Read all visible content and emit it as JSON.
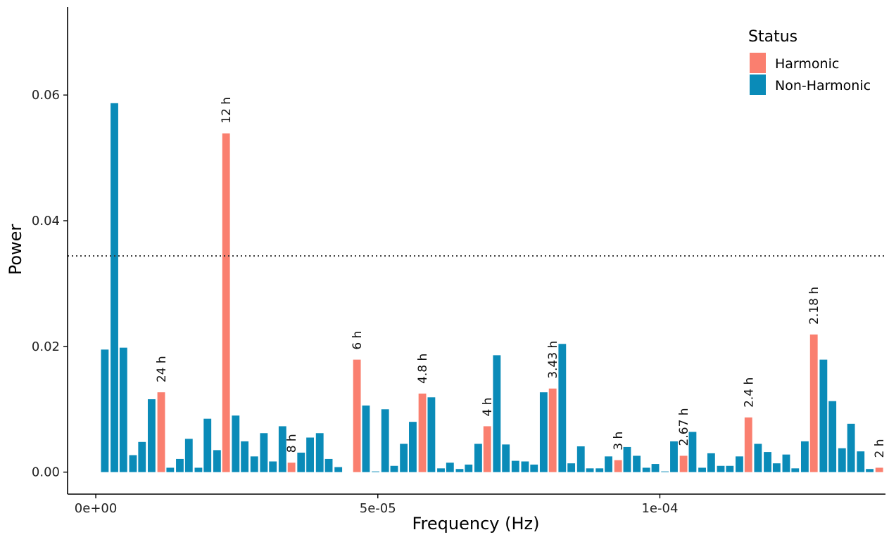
{
  "colors": {
    "harmonic": "#FA7F6F",
    "non_harmonic": "#0A8BB8",
    "axis": "#000000",
    "threshold": "#333333"
  },
  "chart_data": {
    "type": "bar",
    "xlabel": "Frequency (Hz)",
    "ylabel": "Power",
    "xlim": [
      -5e-06,
      0.00014
    ],
    "ylim": [
      -0.0035,
      0.074
    ],
    "x_ticks": [
      {
        "value": 0,
        "label": "0e+00"
      },
      {
        "value": 5e-05,
        "label": "5e-05"
      },
      {
        "value": 0.0001,
        "label": "1e-04"
      }
    ],
    "y_ticks": [
      {
        "value": 0,
        "label": "0.00"
      },
      {
        "value": 0.02,
        "label": "0.02"
      },
      {
        "value": 0.04,
        "label": "0.04"
      },
      {
        "value": 0.06,
        "label": "0.06"
      }
    ],
    "grid": false,
    "threshold": 0.0344,
    "bin_width": 1.65e-06,
    "legend": {
      "title": "Status",
      "placement": "top-right",
      "entries": [
        {
          "key": "harmonic",
          "label": "Harmonic"
        },
        {
          "key": "non_harmonic",
          "label": "Non-Harmonic"
        }
      ]
    },
    "bars": [
      {
        "x": 1.6e-06,
        "y": 0.0195,
        "status": "non_harmonic"
      },
      {
        "x": 3.3e-06,
        "y": 0.0587,
        "status": "non_harmonic"
      },
      {
        "x": 4.9e-06,
        "y": 0.0198,
        "status": "non_harmonic"
      },
      {
        "x": 6.6e-06,
        "y": 0.0027,
        "status": "non_harmonic"
      },
      {
        "x": 8.2e-06,
        "y": 0.0048,
        "status": "non_harmonic"
      },
      {
        "x": 9.9e-06,
        "y": 0.0116,
        "status": "non_harmonic"
      },
      {
        "x": 1.16e-05,
        "y": 0.0127,
        "status": "harmonic",
        "label": "24 h"
      },
      {
        "x": 1.32e-05,
        "y": 0.0007,
        "status": "non_harmonic"
      },
      {
        "x": 1.49e-05,
        "y": 0.0021,
        "status": "non_harmonic"
      },
      {
        "x": 1.65e-05,
        "y": 0.0053,
        "status": "non_harmonic"
      },
      {
        "x": 1.82e-05,
        "y": 0.0007,
        "status": "non_harmonic"
      },
      {
        "x": 1.98e-05,
        "y": 0.0085,
        "status": "non_harmonic"
      },
      {
        "x": 2.15e-05,
        "y": 0.0035,
        "status": "non_harmonic"
      },
      {
        "x": 2.31e-05,
        "y": 0.0539,
        "status": "harmonic",
        "label": "12 h"
      },
      {
        "x": 2.48e-05,
        "y": 0.009,
        "status": "non_harmonic"
      },
      {
        "x": 2.64e-05,
        "y": 0.0049,
        "status": "non_harmonic"
      },
      {
        "x": 2.81e-05,
        "y": 0.0025,
        "status": "non_harmonic"
      },
      {
        "x": 2.98e-05,
        "y": 0.0062,
        "status": "non_harmonic"
      },
      {
        "x": 3.14e-05,
        "y": 0.0017,
        "status": "non_harmonic"
      },
      {
        "x": 3.31e-05,
        "y": 0.0073,
        "status": "non_harmonic"
      },
      {
        "x": 3.47e-05,
        "y": 0.0015,
        "status": "harmonic",
        "label": "8 h"
      },
      {
        "x": 3.64e-05,
        "y": 0.0031,
        "status": "non_harmonic"
      },
      {
        "x": 3.8e-05,
        "y": 0.0055,
        "status": "non_harmonic"
      },
      {
        "x": 3.97e-05,
        "y": 0.0062,
        "status": "non_harmonic"
      },
      {
        "x": 4.13e-05,
        "y": 0.0021,
        "status": "non_harmonic"
      },
      {
        "x": 4.3e-05,
        "y": 0.0008,
        "status": "non_harmonic"
      },
      {
        "x": 4.63e-05,
        "y": 0.0179,
        "status": "harmonic",
        "label": "6 h"
      },
      {
        "x": 4.79e-05,
        "y": 0.0106,
        "status": "non_harmonic"
      },
      {
        "x": 4.96e-05,
        "y": 0.0001,
        "status": "non_harmonic"
      },
      {
        "x": 5.13e-05,
        "y": 0.01,
        "status": "non_harmonic"
      },
      {
        "x": 5.29e-05,
        "y": 0.001,
        "status": "non_harmonic"
      },
      {
        "x": 5.46e-05,
        "y": 0.0045,
        "status": "non_harmonic"
      },
      {
        "x": 5.62e-05,
        "y": 0.008,
        "status": "non_harmonic"
      },
      {
        "x": 5.79e-05,
        "y": 0.0125,
        "status": "harmonic",
        "label": "4.8 h"
      },
      {
        "x": 5.95e-05,
        "y": 0.0119,
        "status": "non_harmonic"
      },
      {
        "x": 6.12e-05,
        "y": 0.0006,
        "status": "non_harmonic"
      },
      {
        "x": 6.28e-05,
        "y": 0.0015,
        "status": "non_harmonic"
      },
      {
        "x": 6.45e-05,
        "y": 0.0005,
        "status": "non_harmonic"
      },
      {
        "x": 6.61e-05,
        "y": 0.0012,
        "status": "non_harmonic"
      },
      {
        "x": 6.78e-05,
        "y": 0.0045,
        "status": "non_harmonic"
      },
      {
        "x": 6.94e-05,
        "y": 0.0073,
        "status": "harmonic",
        "label": "4 h"
      },
      {
        "x": 7.11e-05,
        "y": 0.0186,
        "status": "non_harmonic"
      },
      {
        "x": 7.27e-05,
        "y": 0.0044,
        "status": "non_harmonic"
      },
      {
        "x": 7.44e-05,
        "y": 0.0018,
        "status": "non_harmonic"
      },
      {
        "x": 7.61e-05,
        "y": 0.0017,
        "status": "non_harmonic"
      },
      {
        "x": 7.77e-05,
        "y": 0.0012,
        "status": "non_harmonic"
      },
      {
        "x": 7.94e-05,
        "y": 0.0127,
        "status": "non_harmonic"
      },
      {
        "x": 8.1e-05,
        "y": 0.0133,
        "status": "harmonic",
        "label": "3.43 h"
      },
      {
        "x": 8.27e-05,
        "y": 0.0204,
        "status": "non_harmonic"
      },
      {
        "x": 8.43e-05,
        "y": 0.0014,
        "status": "non_harmonic"
      },
      {
        "x": 8.6e-05,
        "y": 0.0041,
        "status": "non_harmonic"
      },
      {
        "x": 8.76e-05,
        "y": 0.0006,
        "status": "non_harmonic"
      },
      {
        "x": 8.93e-05,
        "y": 0.0006,
        "status": "non_harmonic"
      },
      {
        "x": 9.09e-05,
        "y": 0.0025,
        "status": "non_harmonic"
      },
      {
        "x": 9.26e-05,
        "y": 0.0019,
        "status": "harmonic",
        "label": "3 h"
      },
      {
        "x": 9.42e-05,
        "y": 0.004,
        "status": "non_harmonic"
      },
      {
        "x": 9.59e-05,
        "y": 0.0026,
        "status": "non_harmonic"
      },
      {
        "x": 9.76e-05,
        "y": 0.0007,
        "status": "non_harmonic"
      },
      {
        "x": 9.92e-05,
        "y": 0.0013,
        "status": "non_harmonic"
      },
      {
        "x": 0.0001009,
        "y": 0.0001,
        "status": "non_harmonic"
      },
      {
        "x": 0.0001025,
        "y": 0.0049,
        "status": "non_harmonic"
      },
      {
        "x": 0.0001042,
        "y": 0.0026,
        "status": "harmonic",
        "label": "2.67 h"
      },
      {
        "x": 0.0001058,
        "y": 0.0064,
        "status": "non_harmonic"
      },
      {
        "x": 0.0001075,
        "y": 0.0007,
        "status": "non_harmonic"
      },
      {
        "x": 0.0001091,
        "y": 0.003,
        "status": "non_harmonic"
      },
      {
        "x": 0.0001108,
        "y": 0.001,
        "status": "non_harmonic"
      },
      {
        "x": 0.0001124,
        "y": 0.001,
        "status": "non_harmonic"
      },
      {
        "x": 0.0001141,
        "y": 0.0025,
        "status": "non_harmonic"
      },
      {
        "x": 0.0001157,
        "y": 0.0087,
        "status": "harmonic",
        "label": "2.4 h"
      },
      {
        "x": 0.0001174,
        "y": 0.0045,
        "status": "non_harmonic"
      },
      {
        "x": 0.0001191,
        "y": 0.0032,
        "status": "non_harmonic"
      },
      {
        "x": 0.0001207,
        "y": 0.0014,
        "status": "non_harmonic"
      },
      {
        "x": 0.0001224,
        "y": 0.0028,
        "status": "non_harmonic"
      },
      {
        "x": 0.000124,
        "y": 0.0006,
        "status": "non_harmonic"
      },
      {
        "x": 0.0001257,
        "y": 0.0049,
        "status": "non_harmonic"
      },
      {
        "x": 0.0001273,
        "y": 0.0219,
        "status": "harmonic",
        "label": "2.18 h"
      },
      {
        "x": 0.000129,
        "y": 0.0179,
        "status": "non_harmonic"
      },
      {
        "x": 0.0001306,
        "y": 0.0113,
        "status": "non_harmonic"
      },
      {
        "x": 0.0001323,
        "y": 0.0038,
        "status": "non_harmonic"
      },
      {
        "x": 0.0001339,
        "y": 0.0077,
        "status": "non_harmonic"
      },
      {
        "x": 0.0001356,
        "y": 0.0033,
        "status": "non_harmonic"
      },
      {
        "x": 0.0001372,
        "y": 0.0005,
        "status": "non_harmonic"
      },
      {
        "x": 0.0001389,
        "y": 0.0007,
        "status": "harmonic",
        "label": "2 h"
      }
    ]
  }
}
